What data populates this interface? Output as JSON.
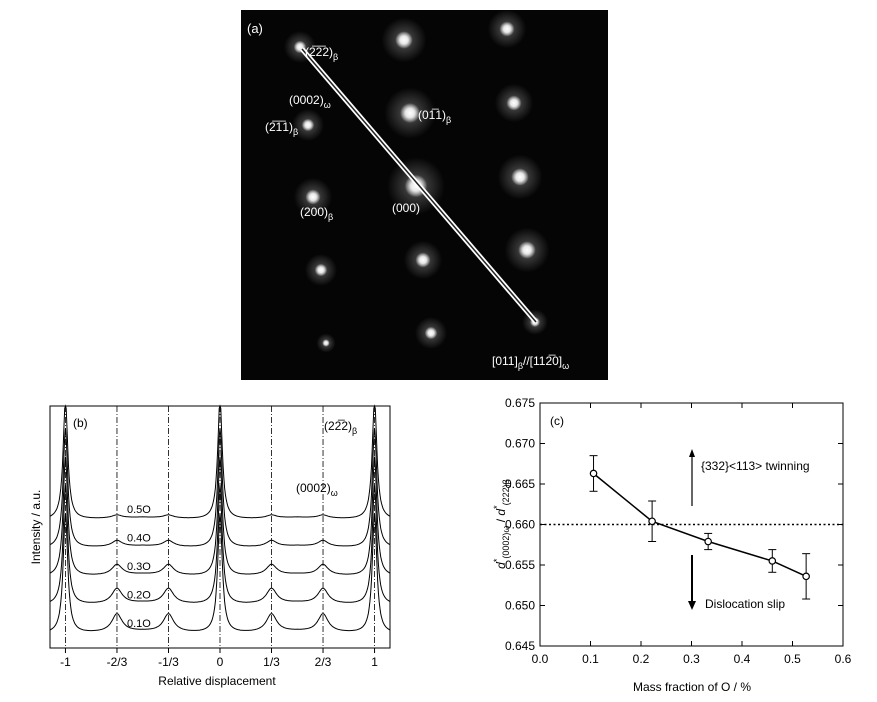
{
  "panel_a": {
    "tag": "(a)",
    "spots": [
      {
        "label": "(2̅2̅2)",
        "sub": "β"
      },
      {
        "label": "(0002)",
        "sub": "ω"
      },
      {
        "label": "(2̅1̅1)",
        "sub": "β"
      },
      {
        "label": "(01̅1)",
        "sub": "β"
      },
      {
        "label": "(200)",
        "sub": "β"
      },
      {
        "label": "(000)",
        "sub": ""
      }
    ],
    "zone_axis": {
      "text1": "[011]",
      "sub1": "β",
      "text2": "//[112̅0]",
      "sub2": "ω"
    }
  },
  "chart_data": [
    {
      "panel": "(b)",
      "type": "line",
      "xlabel": "Relative displacement",
      "ylabel": "Intensity / a.u.",
      "x_ticks": [
        "-1",
        "-2/3",
        "-1/3",
        "0",
        "1/3",
        "2/3",
        "1"
      ],
      "xlim": [
        -1.1,
        1.1
      ],
      "grid_lines_at": [
        "-1",
        "-2/3",
        "-1/3",
        "0",
        "1/3",
        "2/3",
        "1"
      ],
      "peak_labels": [
        {
          "text": "(22̅2)",
          "sub": "β"
        },
        {
          "text": "(0002)",
          "sub": "ω"
        }
      ],
      "series": [
        {
          "name": "0.1O",
          "baseline": 0.1,
          "omega_peak_height": 0.06
        },
        {
          "name": "0.2O",
          "baseline": 0.2,
          "omega_peak_height": 0.05
        },
        {
          "name": "0.3O",
          "baseline": 0.3,
          "omega_peak_height": 0.035
        },
        {
          "name": "0.4O",
          "baseline": 0.4,
          "omega_peak_height": 0.02
        },
        {
          "name": "0.5O",
          "baseline": 0.5,
          "omega_peak_height": 0.01
        }
      ]
    },
    {
      "panel": "(c)",
      "type": "scatter",
      "xlabel": "Mass fraction of O / %",
      "ylabel": "d*(0002)ω / d*(222)β",
      "ylabel_parts": {
        "d": "d",
        "star": "*",
        "sub1": "(0002)ω",
        "slash": " / ",
        "sub2": "(222)β"
      },
      "xlim": [
        0.0,
        0.6
      ],
      "ylim": [
        0.645,
        0.675
      ],
      "x_ticks": [
        "0.0",
        "0.1",
        "0.2",
        "0.3",
        "0.4",
        "0.5",
        "0.6"
      ],
      "y_ticks": [
        "0.645",
        "0.650",
        "0.655",
        "0.660",
        "0.665",
        "0.670",
        "0.675"
      ],
      "x": [
        0.106,
        0.222,
        0.333,
        0.46,
        0.527
      ],
      "y": [
        0.6663,
        0.6604,
        0.6579,
        0.6555,
        0.6536
      ],
      "err": [
        0.0022,
        0.0025,
        0.001,
        0.0014,
        0.0028
      ],
      "reference_y": 0.66,
      "annotations": [
        "{332}<113> twinning",
        "Dislocation slip"
      ]
    }
  ]
}
